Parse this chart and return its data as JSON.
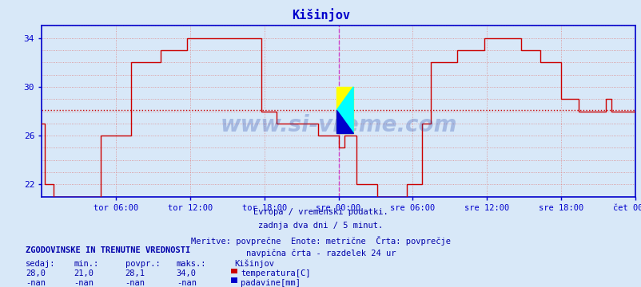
{
  "title": "Kišinjov",
  "title_color": "#0000cc",
  "bg_color": "#d8e8f8",
  "plot_bg_color": "#d8e8f8",
  "line_color": "#cc0000",
  "avg_line_color": "#cc0000",
  "avg_line_value": 28.1,
  "ymin": 21,
  "ymax": 35,
  "ytick_show": [
    22,
    26,
    30,
    34
  ],
  "ytick_all": [
    21,
    22,
    23,
    24,
    25,
    26,
    27,
    28,
    29,
    30,
    31,
    32,
    33,
    34,
    35
  ],
  "grid_color": "#dd8888",
  "axis_color": "#0000cc",
  "tick_label_color": "#0000aa",
  "watermark": "www.si-vreme.com",
  "watermark_color": "#2244aa",
  "watermark_alpha": 0.28,
  "subtitle_lines": [
    "Evropa / vremenski podatki.",
    "zadnja dva dni / 5 minut.",
    "Meritve: povprečne  Enote: metrične  Črta: povprečje",
    "navpična črta - razdelek 24 ur"
  ],
  "subtitle_color": "#0000aa",
  "legend_title": "ZGODOVINSKE IN TRENUTNE VREDNOSTI",
  "legend_headers": [
    "sedaj:",
    "min.:",
    "povpr.:",
    "maks.:",
    "Kišinjov"
  ],
  "legend_row1": [
    "28,0",
    "21,0",
    "28,1",
    "34,0",
    "temperatura[C]"
  ],
  "legend_row2": [
    "-nan",
    "-nan",
    "-nan",
    "-nan",
    "padavine[mm]"
  ],
  "legend_temp_color": "#cc0000",
  "legend_rain_color": "#0000cc",
  "xtick_labels": [
    "tor 06:00",
    "tor 12:00",
    "tor 18:00",
    "sre 00:00",
    "sre 06:00",
    "sre 12:00",
    "sre 18:00",
    "čet 00:00"
  ],
  "xtick_positions": [
    0.125,
    0.25,
    0.375,
    0.5,
    0.625,
    0.75,
    0.875,
    1.0
  ],
  "vline_position": 0.5,
  "vline_color": "#cc44cc",
  "temp_data": [
    [
      0.0,
      27.0
    ],
    [
      0.005,
      27.0
    ],
    [
      0.005,
      22.0
    ],
    [
      0.02,
      22.0
    ],
    [
      0.02,
      21.0
    ],
    [
      0.1,
      21.0
    ],
    [
      0.1,
      26.0
    ],
    [
      0.15,
      26.0
    ],
    [
      0.15,
      32.0
    ],
    [
      0.2,
      32.0
    ],
    [
      0.2,
      33.0
    ],
    [
      0.245,
      33.0
    ],
    [
      0.245,
      34.0
    ],
    [
      0.37,
      34.0
    ],
    [
      0.37,
      28.0
    ],
    [
      0.395,
      28.0
    ],
    [
      0.395,
      27.0
    ],
    [
      0.465,
      27.0
    ],
    [
      0.465,
      26.0
    ],
    [
      0.5,
      26.0
    ],
    [
      0.5,
      25.0
    ],
    [
      0.51,
      25.0
    ],
    [
      0.51,
      26.0
    ],
    [
      0.53,
      26.0
    ],
    [
      0.53,
      22.0
    ],
    [
      0.565,
      22.0
    ],
    [
      0.565,
      21.0
    ],
    [
      0.615,
      21.0
    ],
    [
      0.615,
      22.0
    ],
    [
      0.64,
      22.0
    ],
    [
      0.64,
      27.0
    ],
    [
      0.655,
      27.0
    ],
    [
      0.655,
      32.0
    ],
    [
      0.7,
      32.0
    ],
    [
      0.7,
      33.0
    ],
    [
      0.745,
      33.0
    ],
    [
      0.745,
      34.0
    ],
    [
      0.808,
      34.0
    ],
    [
      0.808,
      33.0
    ],
    [
      0.84,
      33.0
    ],
    [
      0.84,
      32.0
    ],
    [
      0.875,
      32.0
    ],
    [
      0.875,
      29.0
    ],
    [
      0.905,
      29.0
    ],
    [
      0.905,
      28.0
    ],
    [
      0.95,
      28.0
    ],
    [
      0.95,
      29.0
    ],
    [
      0.96,
      29.0
    ],
    [
      0.96,
      28.0
    ],
    [
      1.0,
      28.0
    ]
  ]
}
